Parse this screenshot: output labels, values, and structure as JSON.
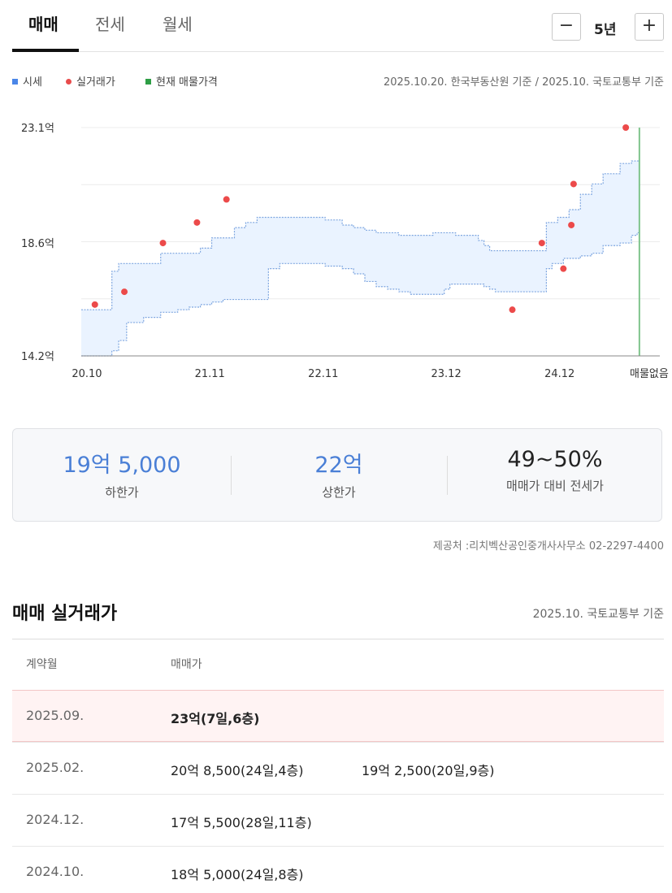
{
  "tabs": [
    {
      "label": "매매",
      "active": true
    },
    {
      "label": "전세",
      "active": false
    },
    {
      "label": "월세",
      "active": false
    }
  ],
  "period": {
    "minus": "−",
    "value": "5년",
    "plus": "+"
  },
  "legend": {
    "items": [
      {
        "label": "시세",
        "color": "#4a86e8",
        "shape": "square"
      },
      {
        "label": "실거래가",
        "color": "#e84c4c",
        "shape": "dot"
      },
      {
        "label": "현재 매물가격",
        "color": "#2e9e45",
        "shape": "square"
      }
    ],
    "note": "2025.10.20. 한국부동산원 기준 / 2025.10. 국토교통부 기준"
  },
  "chart_data": {
    "type": "area",
    "y_tick_labels": [
      "23.1억",
      "18.6억",
      "14.2억"
    ],
    "y_ticks": [
      23.1,
      18.6,
      14.2
    ],
    "ylim": [
      14.2,
      23.1
    ],
    "x_tick_labels": [
      "20.10",
      "21.11",
      "22.11",
      "23.12",
      "24.12",
      "매물없음"
    ],
    "x_ticks": [
      2020.75,
      2021.833,
      2022.833,
      2023.917,
      2024.917,
      2025.8
    ],
    "xlim": [
      2020.7,
      2025.8
    ],
    "grid": true,
    "band": {
      "x": [
        2020.7,
        2020.9,
        2020.97,
        2021.03,
        2021.1,
        2021.25,
        2021.4,
        2021.55,
        2021.6,
        2021.65,
        2021.75,
        2021.85,
        2021.95,
        2022.05,
        2022.15,
        2022.25,
        2022.35,
        2022.45,
        2022.75,
        2022.85,
        2023.0,
        2023.1,
        2023.2,
        2023.3,
        2023.4,
        2023.5,
        2023.6,
        2023.8,
        2023.9,
        2023.95,
        2024.0,
        2024.1,
        2024.2,
        2024.25,
        2024.3,
        2024.35,
        2024.45,
        2024.55,
        2024.75,
        2024.8,
        2024.85,
        2024.9,
        2024.95,
        2025.0,
        2025.1,
        2025.2,
        2025.3,
        2025.45,
        2025.55,
        2025.6,
        2025.62
      ],
      "upper": [
        16.0,
        16.0,
        17.5,
        17.8,
        17.8,
        17.8,
        18.2,
        18.2,
        18.2,
        18.2,
        18.4,
        18.8,
        18.8,
        19.2,
        19.4,
        19.6,
        19.6,
        19.6,
        19.6,
        19.5,
        19.3,
        19.2,
        19.1,
        19.0,
        19.0,
        18.9,
        18.9,
        19.0,
        19.0,
        19.0,
        18.9,
        18.9,
        18.7,
        18.5,
        18.3,
        18.3,
        18.3,
        18.3,
        18.3,
        19.4,
        19.4,
        19.6,
        19.6,
        19.9,
        20.5,
        20.9,
        21.3,
        21.7,
        21.8,
        21.8,
        22.3
      ],
      "lower": [
        14.2,
        14.2,
        14.4,
        14.8,
        15.5,
        15.7,
        15.9,
        16.0,
        16.0,
        16.1,
        16.2,
        16.3,
        16.4,
        16.4,
        16.4,
        16.4,
        17.6,
        17.8,
        17.8,
        17.7,
        17.6,
        17.4,
        17.1,
        16.9,
        16.8,
        16.7,
        16.6,
        16.6,
        16.8,
        17.0,
        17.0,
        17.0,
        17.0,
        16.9,
        16.8,
        16.7,
        16.7,
        16.7,
        16.7,
        17.6,
        17.8,
        17.8,
        18.0,
        18.0,
        18.1,
        18.2,
        18.5,
        18.6,
        18.9,
        19.0,
        19.6
      ]
    },
    "transactions": [
      {
        "x": 2020.82,
        "y": 16.2
      },
      {
        "x": 2021.08,
        "y": 16.7
      },
      {
        "x": 2021.42,
        "y": 18.6
      },
      {
        "x": 2021.72,
        "y": 19.4
      },
      {
        "x": 2021.98,
        "y": 20.3
      },
      {
        "x": 2024.5,
        "y": 16.0
      },
      {
        "x": 2024.76,
        "y": 18.6
      },
      {
        "x": 2024.95,
        "y": 17.6
      },
      {
        "x": 2025.02,
        "y": 19.3
      },
      {
        "x": 2025.04,
        "y": 20.9
      },
      {
        "x": 2025.5,
        "y": 23.1
      }
    ],
    "current_listing_x": 2025.62
  },
  "stats": [
    {
      "value": "19억 5,000",
      "label": "하한가"
    },
    {
      "value": "22억",
      "label": "상한가"
    },
    {
      "value": "49~50%",
      "label": "매매가 대비 전세가"
    }
  ],
  "provider": "제공처 :리치벡산공인중개사사무소 02-2297-4400",
  "trades": {
    "title": "매매 실거래가",
    "note": "2025.10. 국토교통부 기준",
    "headers": {
      "date": "계약월",
      "price": "매매가"
    },
    "rows": [
      {
        "date": "2025.09.",
        "prices": [
          "23억(7일,6층)"
        ]
      },
      {
        "date": "2025.02.",
        "prices": [
          "20억 8,500(24일,4층)",
          "19억 2,500(20일,9층)"
        ]
      },
      {
        "date": "2024.12.",
        "prices": [
          "17억 5,500(28일,11층)"
        ]
      },
      {
        "date": "2024.10.",
        "prices": [
          "18억 5,000(24일,8층)"
        ]
      }
    ]
  }
}
